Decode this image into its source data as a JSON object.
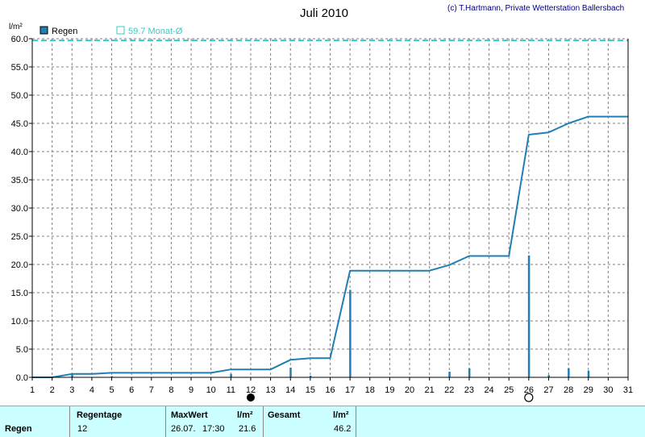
{
  "title": "Juli 2010",
  "copyright": "(c) T.Hartmann, Private Wetterstation Ballersbach",
  "colors": {
    "series": "#1f7fb4",
    "reference": "#33cccc",
    "grid": "#7f7f7f",
    "footer_bg": "#ccffff"
  },
  "chart_data": {
    "type": "line",
    "title": "Juli 2010",
    "ylabel": "l/m²",
    "xlabel": "",
    "xlim": [
      1,
      31
    ],
    "ylim": [
      0,
      60
    ],
    "x_ticks": [
      1,
      2,
      3,
      4,
      5,
      6,
      7,
      8,
      9,
      10,
      11,
      12,
      13,
      14,
      15,
      16,
      17,
      18,
      19,
      20,
      21,
      22,
      23,
      24,
      25,
      26,
      27,
      28,
      29,
      30,
      31
    ],
    "y_ticks": [
      "0.0",
      "5.0",
      "10.0",
      "15.0",
      "20.0",
      "25.0",
      "30.0",
      "35.0",
      "40.0",
      "45.0",
      "50.0",
      "55.0",
      "60.0"
    ],
    "grid": true,
    "legend": [
      {
        "label": "Regen",
        "marker": "filled-square"
      },
      {
        "label": "59.7 Monat-Ø",
        "marker": "hollow-square"
      }
    ],
    "cumulative": {
      "name": "Regen",
      "x": [
        1,
        2,
        3,
        4,
        5,
        6,
        7,
        8,
        9,
        10,
        11,
        12,
        13,
        14,
        15,
        16,
        17,
        18,
        19,
        20,
        21,
        22,
        23,
        24,
        25,
        26,
        27,
        28,
        29,
        30,
        31
      ],
      "y": [
        0,
        0,
        0.6,
        0.6,
        0.8,
        0.8,
        0.8,
        0.8,
        0.8,
        0.8,
        1.4,
        1.4,
        1.4,
        3.1,
        3.4,
        3.4,
        18.9,
        18.9,
        18.9,
        18.9,
        18.9,
        19.9,
        21.5,
        21.5,
        21.5,
        43.0,
        43.4,
        45.0,
        46.2,
        46.2,
        46.2
      ]
    },
    "daily": {
      "name": "Regen",
      "x": [
        2,
        3,
        5,
        11,
        14,
        15,
        17,
        22,
        23,
        26,
        27,
        28,
        29
      ],
      "y": [
        0.1,
        0.5,
        0.2,
        0.6,
        1.7,
        0.3,
        15.5,
        1.0,
        1.6,
        21.6,
        0.4,
        1.6,
        1.2
      ]
    },
    "reference_value": 59.7,
    "moon_phases": [
      {
        "day": 12,
        "phase": "new-moon"
      },
      {
        "day": 26,
        "phase": "full-moon"
      }
    ]
  },
  "footer": {
    "row_label": "Regen",
    "regentage_label": "Regentage",
    "regentage_value": "12",
    "maxwert_label": "MaxWert",
    "maxwert_unit": "l/m²",
    "maxwert_date": "26.07.",
    "maxwert_time": "17:30",
    "maxwert_value": "21.6",
    "gesamt_label": "Gesamt",
    "gesamt_unit": "l/m²",
    "gesamt_value": "46.2"
  }
}
